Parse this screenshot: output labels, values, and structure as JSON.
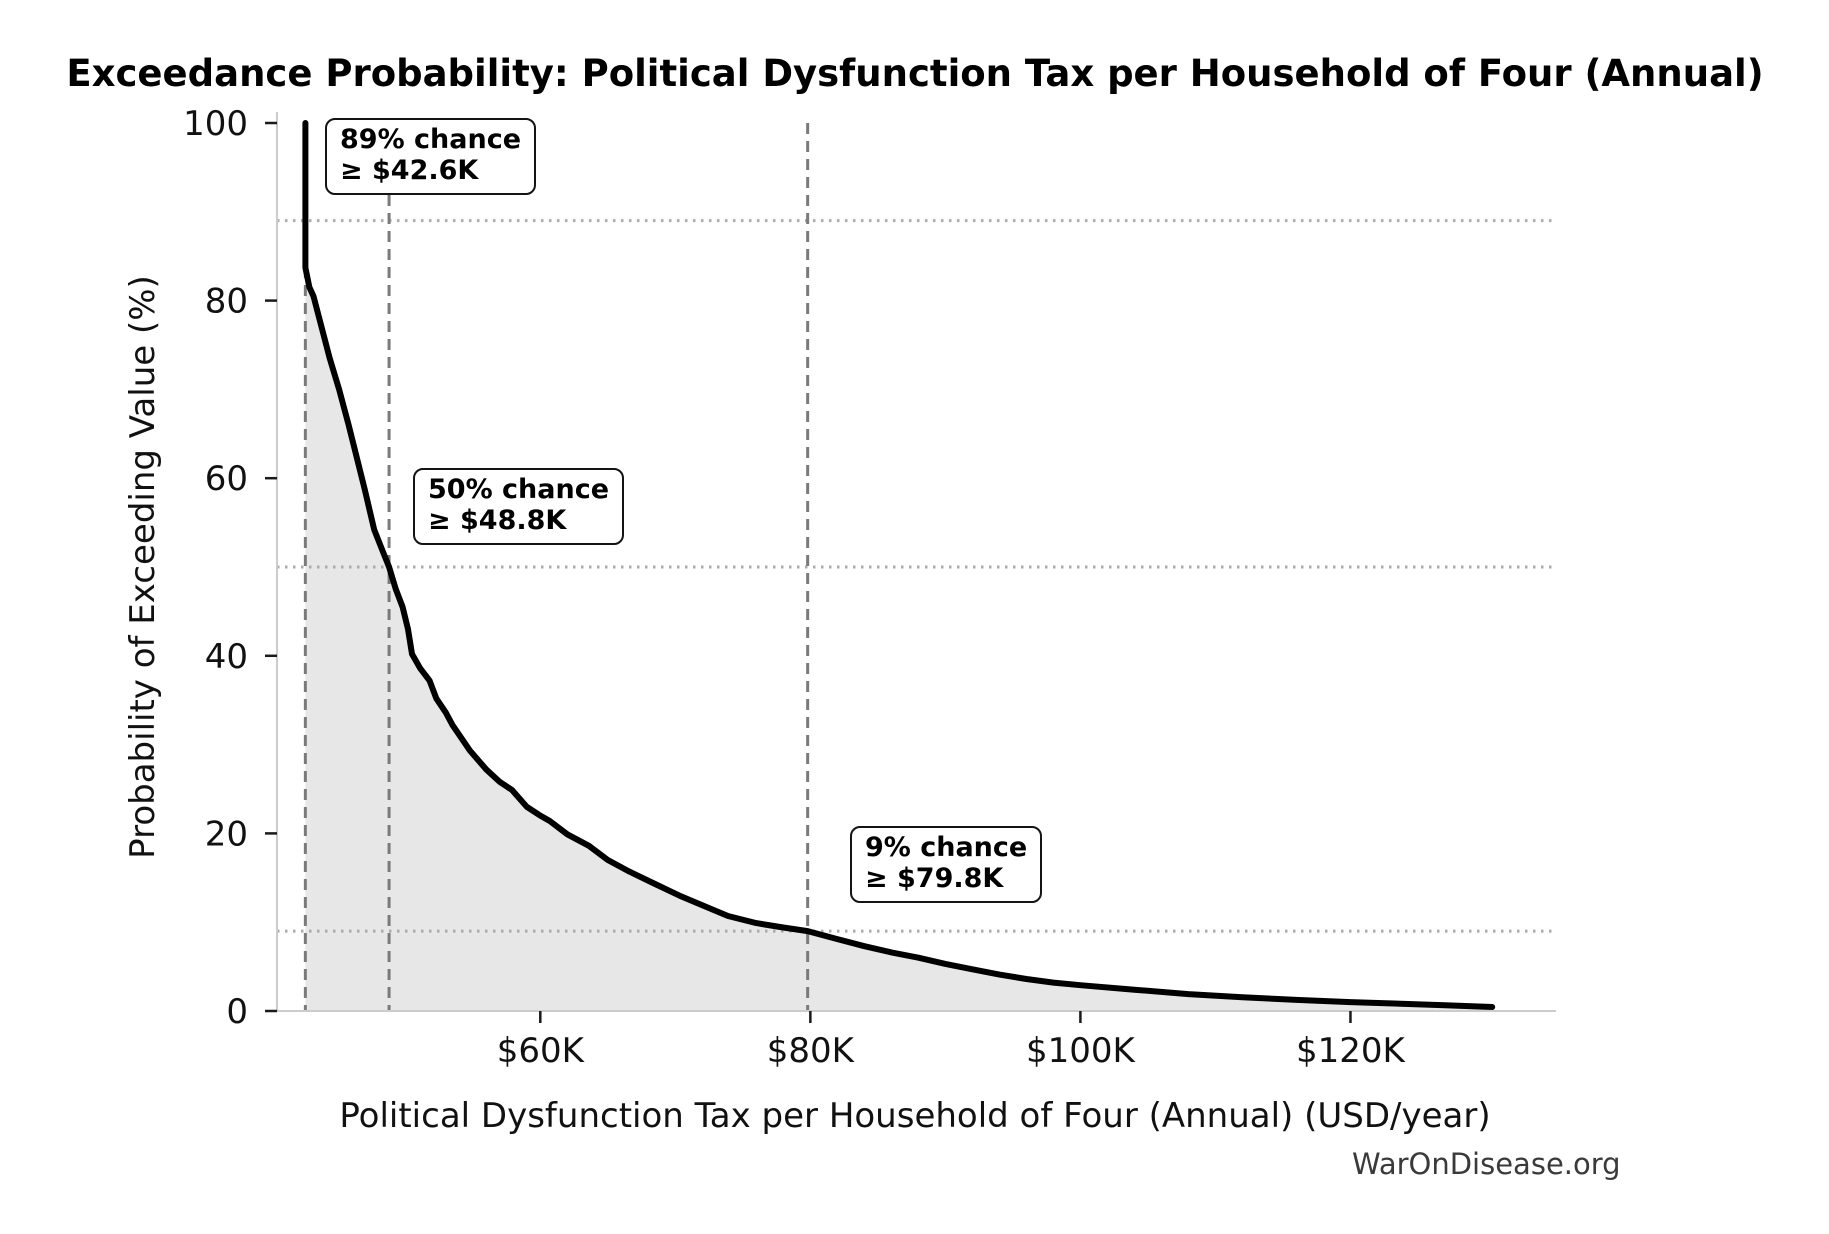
{
  "figure": {
    "watermark": "WarOnDisease.org"
  },
  "chart_data": {
    "type": "area",
    "subtype": "exceedance-probability-curve",
    "title": "Exceedance Probability: Political Dysfunction Tax per Household of Four (Annual)",
    "xlabel": "Political Dysfunction Tax per Household of Four (Annual) (USD/year)",
    "ylabel": "Probability of Exceeding Value (%)",
    "xlim_usd_k": [
      40.5,
      135
    ],
    "ylim_pct": [
      0,
      100
    ],
    "grid": "reference lines only",
    "legend": "none",
    "x_ticks": [
      {
        "value_k": 60,
        "label": "$60K"
      },
      {
        "value_k": 80,
        "label": "$80K"
      },
      {
        "value_k": 100,
        "label": "$100K"
      },
      {
        "value_k": 120,
        "label": "$120K"
      }
    ],
    "y_ticks": [
      {
        "value_pct": 0,
        "label": "0"
      },
      {
        "value_pct": 20,
        "label": "20"
      },
      {
        "value_pct": 40,
        "label": "40"
      },
      {
        "value_pct": 60,
        "label": "60"
      },
      {
        "value_pct": 80,
        "label": "80"
      },
      {
        "value_pct": 100,
        "label": "100"
      }
    ],
    "series": [
      {
        "name": "Exceedance probability",
        "x_usd_k": [
          42.6,
          42.6,
          42.9,
          43.2,
          43.8,
          44.4,
          45.1,
          45.8,
          46.3,
          47.0,
          47.7,
          48.4,
          48.8,
          49.3,
          49.8,
          50.2,
          50.5,
          51.1,
          51.8,
          52.3,
          53.0,
          53.5,
          54.8,
          56.0,
          57.0,
          57.9,
          59.0,
          60.0,
          60.7,
          62.0,
          63.6,
          65.0,
          66.6,
          68.5,
          70.3,
          72.0,
          73.9,
          76.0,
          78.0,
          79.8,
          82.0,
          84.0,
          86.0,
          88.0,
          90.0,
          92.0,
          94.0,
          96.0,
          98.0,
          100.0,
          104.0,
          108.0,
          112.0,
          116.0,
          120.0,
          124.0,
          127.0,
          130.5
        ],
        "prob_pct": [
          100,
          83.7,
          81.5,
          80.5,
          77.0,
          73.5,
          70.0,
          66.0,
          63.0,
          58.7,
          54.2,
          51.5,
          50.0,
          47.5,
          45.5,
          43.0,
          40.2,
          38.6,
          37.2,
          35.2,
          33.6,
          32.2,
          29.3,
          27.2,
          25.8,
          24.9,
          23.0,
          22.0,
          21.4,
          19.9,
          18.6,
          17.0,
          15.7,
          14.3,
          13.0,
          11.9,
          10.7,
          9.9,
          9.4,
          9.0,
          8.1,
          7.3,
          6.6,
          6.0,
          5.3,
          4.7,
          4.1,
          3.6,
          3.2,
          2.9,
          2.4,
          1.9,
          1.55,
          1.25,
          1.0,
          0.8,
          0.65,
          0.45
        ]
      }
    ],
    "annotations": [
      {
        "prob_pct": 89,
        "value_usd_k": 42.6,
        "line1": "89% chance",
        "line2": "≥ $42.6K"
      },
      {
        "prob_pct": 50,
        "value_usd_k": 48.8,
        "line1": "50% chance",
        "line2": "≥ $48.8K"
      },
      {
        "prob_pct": 9,
        "value_usd_k": 79.8,
        "line1": "9% chance",
        "line2": "≥ $79.8K"
      }
    ],
    "colors": {
      "curve": "#000000",
      "fill": "#e7e7e7",
      "dashed_line": "#7a7a7a",
      "dotted_line": "#ababab",
      "spine": "#cccccc",
      "tick": "#1a1a1a",
      "tick_label": "#111111",
      "watermark": "#3a3a3a"
    }
  }
}
